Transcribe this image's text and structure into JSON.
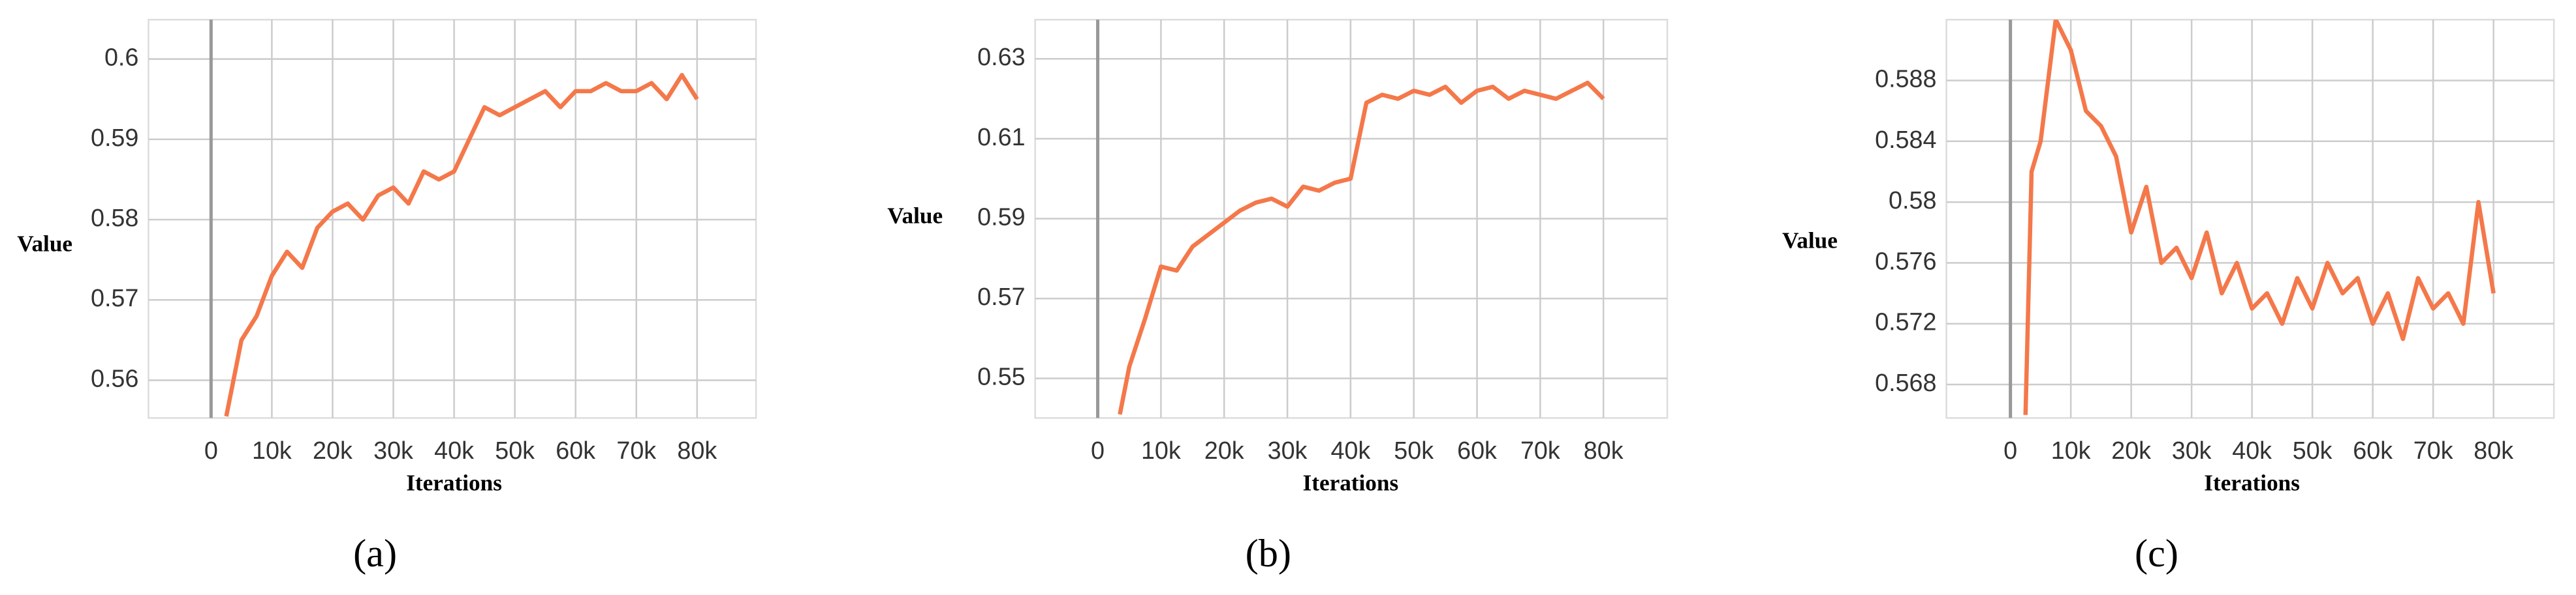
{
  "chart_data": [
    {
      "type": "line",
      "y_label": "Value",
      "x_label": "Iterations",
      "panel_label": "(a)",
      "color": "#f4784a",
      "grid": true,
      "x": [
        2500,
        5000,
        7500,
        10000,
        12500,
        15000,
        17500,
        20000,
        22500,
        25000,
        27500,
        30000,
        32500,
        35000,
        37500,
        40000,
        42500,
        45000,
        47500,
        50000,
        52500,
        55000,
        57500,
        60000,
        62500,
        65000,
        67500,
        70000,
        72500,
        75000,
        77500,
        80000
      ],
      "values": [
        0.5555,
        0.565,
        0.568,
        0.573,
        0.576,
        0.574,
        0.579,
        0.581,
        0.582,
        0.58,
        0.583,
        0.584,
        0.582,
        0.586,
        0.585,
        0.586,
        0.59,
        0.594,
        0.593,
        0.594,
        0.595,
        0.596,
        0.594,
        0.596,
        0.596,
        0.597,
        0.596,
        0.596,
        0.597,
        0.595,
        0.598,
        0.595
      ],
      "xlim": [
        -10300,
        89700
      ],
      "ylim": [
        0.5553,
        0.6049
      ],
      "xticks": [
        0,
        {
          "value": 10000,
          "label": "10k"
        },
        {
          "value": 20000,
          "label": "20k"
        },
        {
          "value": 30000,
          "label": "30k"
        },
        {
          "value": 40000,
          "label": "40k"
        },
        {
          "value": 50000,
          "label": "50k"
        },
        {
          "value": 60000,
          "label": "60k"
        },
        {
          "value": 70000,
          "label": "70k"
        },
        {
          "value": 80000,
          "label": "80k"
        }
      ],
      "yticks": [
        0.56,
        0.57,
        0.58,
        0.59,
        0.6
      ]
    },
    {
      "type": "line",
      "y_label": "Value",
      "x_label": "Iterations",
      "panel_label": "(b)",
      "color": "#f4784a",
      "grid": true,
      "x": [
        3500,
        5000,
        7500,
        10000,
        12500,
        15000,
        17500,
        20000,
        22500,
        25000,
        27500,
        30000,
        32500,
        35000,
        37500,
        40000,
        42500,
        45000,
        47500,
        50000,
        52500,
        55000,
        57500,
        60000,
        62500,
        65000,
        67500,
        70000,
        72500,
        75000,
        77500,
        80000
      ],
      "values": [
        0.541,
        0.553,
        0.565,
        0.578,
        0.577,
        0.583,
        0.586,
        0.589,
        0.592,
        0.594,
        0.595,
        0.593,
        0.598,
        0.597,
        0.599,
        0.6,
        0.619,
        0.621,
        0.62,
        0.622,
        0.621,
        0.623,
        0.619,
        0.622,
        0.623,
        0.62,
        0.622,
        0.621,
        0.62,
        0.622,
        0.624,
        0.62
      ],
      "xlim": [
        -9900,
        90100
      ],
      "ylim": [
        0.5401,
        0.6398
      ],
      "xticks": [
        0,
        {
          "value": 10000,
          "label": "10k"
        },
        {
          "value": 20000,
          "label": "20k"
        },
        {
          "value": 30000,
          "label": "30k"
        },
        {
          "value": 40000,
          "label": "40k"
        },
        {
          "value": 50000,
          "label": "50k"
        },
        {
          "value": 60000,
          "label": "60k"
        },
        {
          "value": 70000,
          "label": "70k"
        },
        {
          "value": 80000,
          "label": "80k"
        }
      ],
      "yticks": [
        0.55,
        0.57,
        0.59,
        0.61,
        0.63
      ]
    },
    {
      "type": "line",
      "y_label": "Value",
      "x_label": "Iterations",
      "panel_label": "(c)",
      "color": "#f4784a",
      "grid": true,
      "x": [
        2500,
        3500,
        5000,
        7500,
        10000,
        12500,
        15000,
        17500,
        20000,
        22500,
        25000,
        27500,
        30000,
        32500,
        35000,
        37500,
        40000,
        42500,
        45000,
        47500,
        50000,
        52500,
        55000,
        57500,
        60000,
        62500,
        65000,
        67500,
        70000,
        72500,
        75000,
        77500,
        80000
      ],
      "values": [
        0.566,
        0.582,
        0.584,
        0.592,
        0.59,
        0.586,
        0.585,
        0.583,
        0.578,
        0.581,
        0.576,
        0.577,
        0.575,
        0.578,
        0.574,
        0.576,
        0.573,
        0.574,
        0.572,
        0.575,
        0.573,
        0.576,
        0.574,
        0.575,
        0.572,
        0.574,
        0.571,
        0.575,
        0.573,
        0.574,
        0.572,
        0.58,
        0.574
      ],
      "xlim": [
        -10600,
        90000
      ],
      "ylim": [
        0.5658,
        0.592
      ],
      "xticks": [
        0,
        {
          "value": 10000,
          "label": "10k"
        },
        {
          "value": 20000,
          "label": "20k"
        },
        {
          "value": 30000,
          "label": "30k"
        },
        {
          "value": 40000,
          "label": "40k"
        },
        {
          "value": 50000,
          "label": "50k"
        },
        {
          "value": 60000,
          "label": "60k"
        },
        {
          "value": 70000,
          "label": "70k"
        },
        {
          "value": 80000,
          "label": "80k"
        }
      ],
      "yticks": [
        0.568,
        0.572,
        0.576,
        0.58,
        0.584,
        0.588
      ]
    }
  ]
}
